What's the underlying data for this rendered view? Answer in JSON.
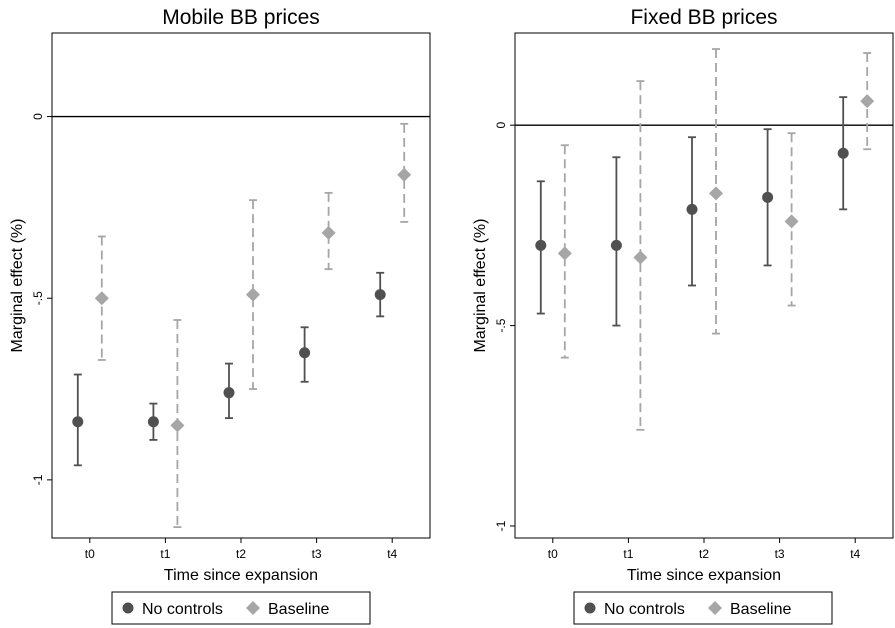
{
  "chart_data": [
    {
      "type": "scatter",
      "title": "Mobile BB prices",
      "xlabel": "Time since expansion",
      "ylabel": "Marginal effect (%)",
      "categories": [
        "t0",
        "t1",
        "t2",
        "t3",
        "t4"
      ],
      "yticks": [
        0,
        -0.5,
        -1
      ],
      "ytick_labels": [
        "0",
        "-.5",
        "-1"
      ],
      "ylim": [
        -1.16,
        0.23
      ],
      "reference_line": 0,
      "series": [
        {
          "name": "No controls",
          "marker": "circle",
          "color": "#505050",
          "line_style": "solid",
          "values": [
            -0.84,
            -0.84,
            -0.76,
            -0.65,
            -0.49
          ],
          "ci_low": [
            -0.96,
            -0.89,
            -0.83,
            -0.73,
            -0.55
          ],
          "ci_high": [
            -0.71,
            -0.79,
            -0.68,
            -0.58,
            -0.43
          ]
        },
        {
          "name": "Baseline",
          "marker": "diamond",
          "color": "#a6a6a6",
          "line_style": "dashed",
          "values": [
            -0.5,
            -0.85,
            -0.49,
            -0.32,
            -0.16
          ],
          "ci_low": [
            -0.67,
            -1.13,
            -0.75,
            -0.42,
            -0.29
          ],
          "ci_high": [
            -0.33,
            -0.56,
            -0.23,
            -0.21,
            -0.02
          ]
        }
      ],
      "legend": {
        "position": "bottom",
        "entries": [
          "No controls",
          "Baseline"
        ]
      }
    },
    {
      "type": "scatter",
      "title": "Fixed BB prices",
      "xlabel": "Time since expansion",
      "ylabel": "Marginal effect (%)",
      "categories": [
        "t0",
        "t1",
        "t2",
        "t3",
        "t4"
      ],
      "yticks": [
        0,
        -0.5,
        -1
      ],
      "ytick_labels": [
        "0",
        "-.5",
        "-1"
      ],
      "ylim": [
        -1.03,
        0.23
      ],
      "reference_line": 0,
      "series": [
        {
          "name": "No controls",
          "marker": "circle",
          "color": "#505050",
          "line_style": "solid",
          "values": [
            -0.3,
            -0.3,
            -0.21,
            -0.18,
            -0.07
          ],
          "ci_low": [
            -0.47,
            -0.5,
            -0.4,
            -0.35,
            -0.21
          ],
          "ci_high": [
            -0.14,
            -0.08,
            -0.03,
            -0.01,
            0.07
          ]
        },
        {
          "name": "Baseline",
          "marker": "diamond",
          "color": "#a6a6a6",
          "line_style": "dashed",
          "values": [
            -0.32,
            -0.33,
            -0.17,
            -0.24,
            0.06
          ],
          "ci_low": [
            -0.58,
            -0.76,
            -0.52,
            -0.45,
            -0.06
          ],
          "ci_high": [
            -0.05,
            0.11,
            0.19,
            -0.02,
            0.18
          ]
        }
      ],
      "legend": {
        "position": "bottom",
        "entries": [
          "No controls",
          "Baseline"
        ]
      }
    }
  ]
}
